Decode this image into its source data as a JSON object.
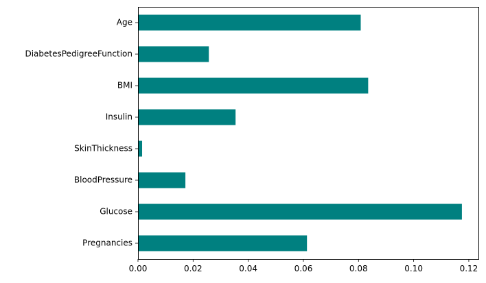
{
  "chart_data": {
    "type": "bar",
    "orientation": "horizontal",
    "title": "",
    "xlabel": "",
    "ylabel": "",
    "categories": [
      "Pregnancies",
      "Glucose",
      "BloodPressure",
      "SkinThickness",
      "Insulin",
      "BMI",
      "DiabetesPedigreeFunction",
      "Age"
    ],
    "values": [
      0.0613,
      0.1175,
      0.0172,
      0.0015,
      0.0354,
      0.0835,
      0.0257,
      0.0808
    ],
    "xlim": [
      0,
      0.1235
    ],
    "xticks": [
      "0.00",
      "0.02",
      "0.04",
      "0.06",
      "0.08",
      "0.10",
      "0.12"
    ],
    "xtick_values": [
      0,
      0.02,
      0.04,
      0.06,
      0.08,
      0.1,
      0.12
    ],
    "bar_color": "#008080",
    "grid": false,
    "legend": "none"
  }
}
